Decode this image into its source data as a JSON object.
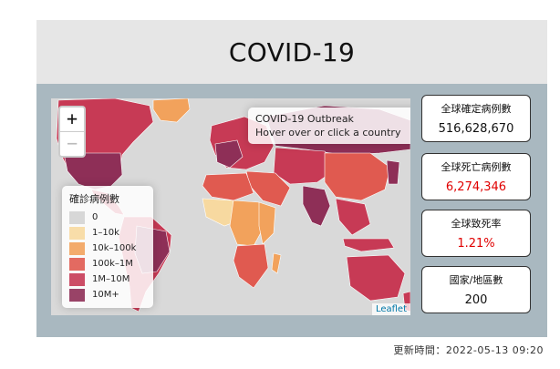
{
  "title": "COVID-19",
  "map": {
    "zoom_in": "+",
    "zoom_out": "−",
    "info_line1": "COVID-19 Outbreak",
    "info_line2": "Hover over or click a country",
    "attribution": "Leaflet",
    "legend": {
      "title": "確診病例數",
      "items": [
        {
          "label": "0",
          "color": "#d3d3d3"
        },
        {
          "label": "1–10k",
          "color": "#f7d9a0"
        },
        {
          "label": "10k–100k",
          "color": "#f2a25c"
        },
        {
          "label": "100k–1M",
          "color": "#e05a50"
        },
        {
          "label": "1M–10M",
          "color": "#c73a55"
        },
        {
          "label": "10M+",
          "color": "#8e2f57"
        }
      ]
    }
  },
  "stats": {
    "cases_label": "全球確定病例數",
    "cases_value": "516,628,670",
    "deaths_label": "全球死亡病例數",
    "deaths_value": "6,274,346",
    "cfr_label": "全球致死率",
    "cfr_value": "1.21%",
    "countries_label": "國家/地區數",
    "countries_value": "200"
  },
  "updated": "更新時間：2022-05-13 09:20"
}
